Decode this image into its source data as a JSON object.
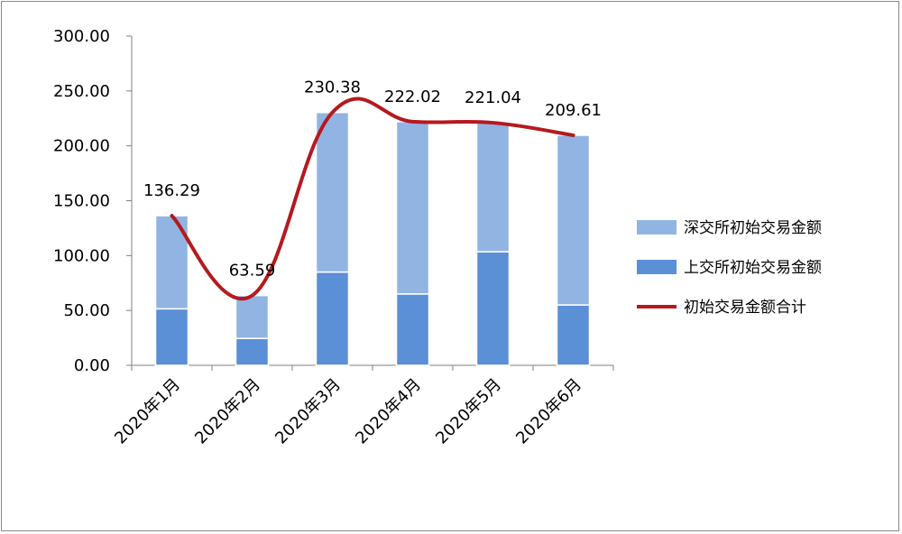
{
  "chart_data": {
    "type": "bar",
    "stacked": true,
    "categories": [
      "2020年1月",
      "2020年2月",
      "2020年3月",
      "2020年4月",
      "2020年5月",
      "2020年6月"
    ],
    "series": [
      {
        "name": "上交所初始交易金额",
        "kind": "bar",
        "color": "#5b8fd6",
        "values": [
          51.5,
          24.5,
          85.0,
          65.0,
          103.5,
          55.0
        ]
      },
      {
        "name": "深交所初始交易金额",
        "kind": "bar",
        "color": "#92b4e2",
        "values": [
          84.79,
          39.09,
          145.38,
          157.02,
          117.54,
          154.61
        ]
      },
      {
        "name": "初始交易金额合计",
        "kind": "line",
        "color": "#b5191e",
        "values": [
          136.29,
          63.59,
          230.38,
          222.02,
          221.04,
          209.61
        ]
      }
    ],
    "data_labels": [
      "136.29",
      "63.59",
      "230.38",
      "222.02",
      "221.04",
      "209.61"
    ],
    "y_ticks": [
      "0.00",
      "50.00",
      "100.00",
      "150.00",
      "200.00",
      "250.00",
      "300.00"
    ],
    "ylim": [
      0,
      300
    ],
    "legend_position": "right",
    "legend": [
      "深交所初始交易金额",
      "上交所初始交易金额",
      "初始交易金额合计"
    ]
  }
}
